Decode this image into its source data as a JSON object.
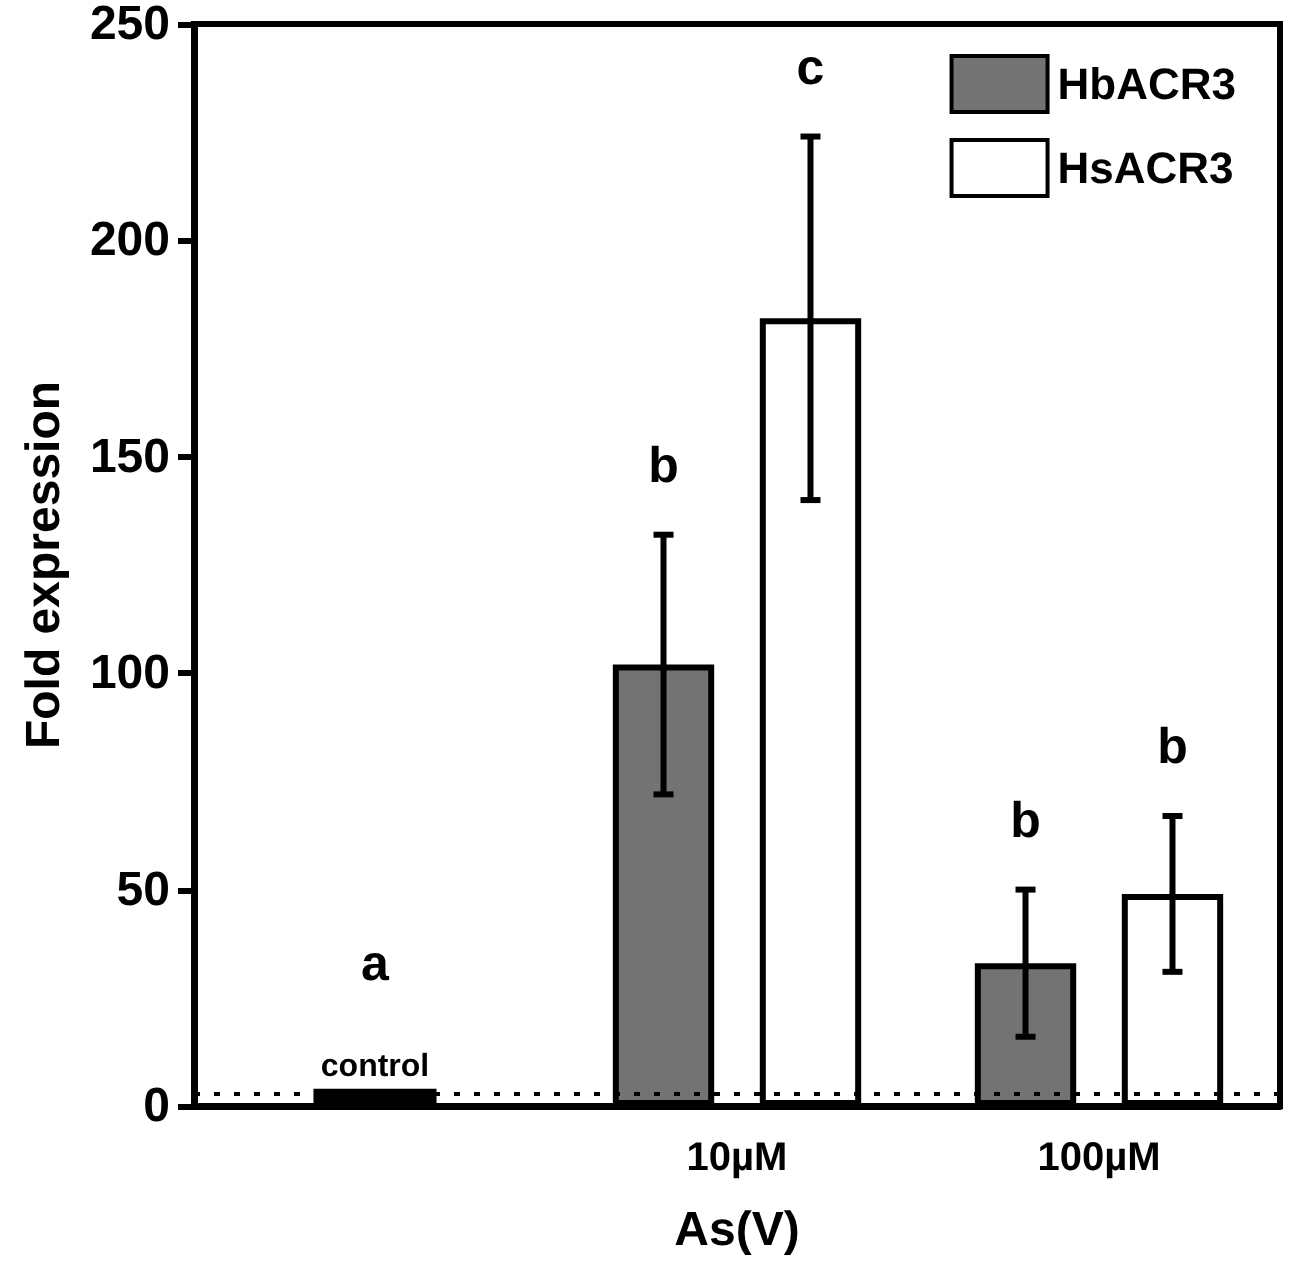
{
  "chart_data": {
    "type": "bar",
    "xlabel": "As(V)",
    "ylabel": "Fold expression",
    "categories": [
      null,
      "10µM",
      "100µM"
    ],
    "series": [
      {
        "name": "HbACR3",
        "color": "#737373",
        "values": [
          null,
          102,
          33
        ],
        "errors": [
          null,
          30,
          17
        ]
      },
      {
        "name": "HsACR3",
        "color": "#ffffff",
        "values": [
          null,
          182,
          49
        ],
        "errors": [
          null,
          42,
          18
        ]
      },
      {
        "name": "control",
        "color": "#000000",
        "values": [
          4,
          null,
          null
        ]
      }
    ],
    "ylim": [
      0,
      250
    ],
    "yticks": [
      0,
      50,
      100,
      150,
      200,
      250
    ],
    "ref_lines": [
      {
        "axis": "y",
        "value": 3,
        "line_style": "dotted",
        "color": "#000000"
      }
    ],
    "annotations": [
      "a",
      "b",
      "c",
      "b",
      "b"
    ],
    "legend": "top right",
    "grid": false
  }
}
